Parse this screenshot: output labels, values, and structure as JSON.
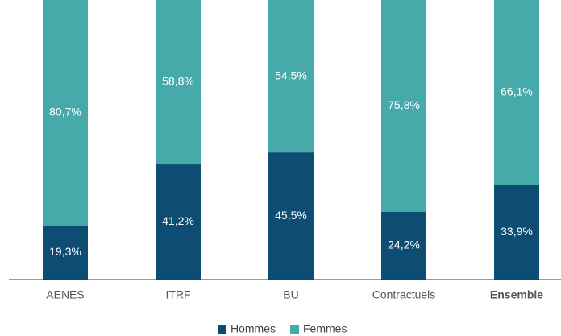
{
  "chart_data": {
    "type": "stacked_bar",
    "categories": [
      "AENES",
      "ITRF",
      "BU",
      "Contractuels",
      "Ensemble"
    ],
    "series": [
      {
        "name": "Hommes",
        "color": "#0e4d73",
        "values": [
          19.3,
          41.2,
          45.5,
          24.2,
          33.9
        ],
        "value_labels": [
          "19,3%",
          "41,2%",
          "45,5%",
          "24,2%",
          "33,9%"
        ]
      },
      {
        "name": "Femmes",
        "color": "#45aaa9",
        "values": [
          80.7,
          58.8,
          54.5,
          75.8,
          66.1
        ],
        "value_labels": [
          "80,7%",
          "58,8%",
          "54,5%",
          "75,8%",
          "66,1%"
        ]
      }
    ],
    "legend": "bottom"
  }
}
